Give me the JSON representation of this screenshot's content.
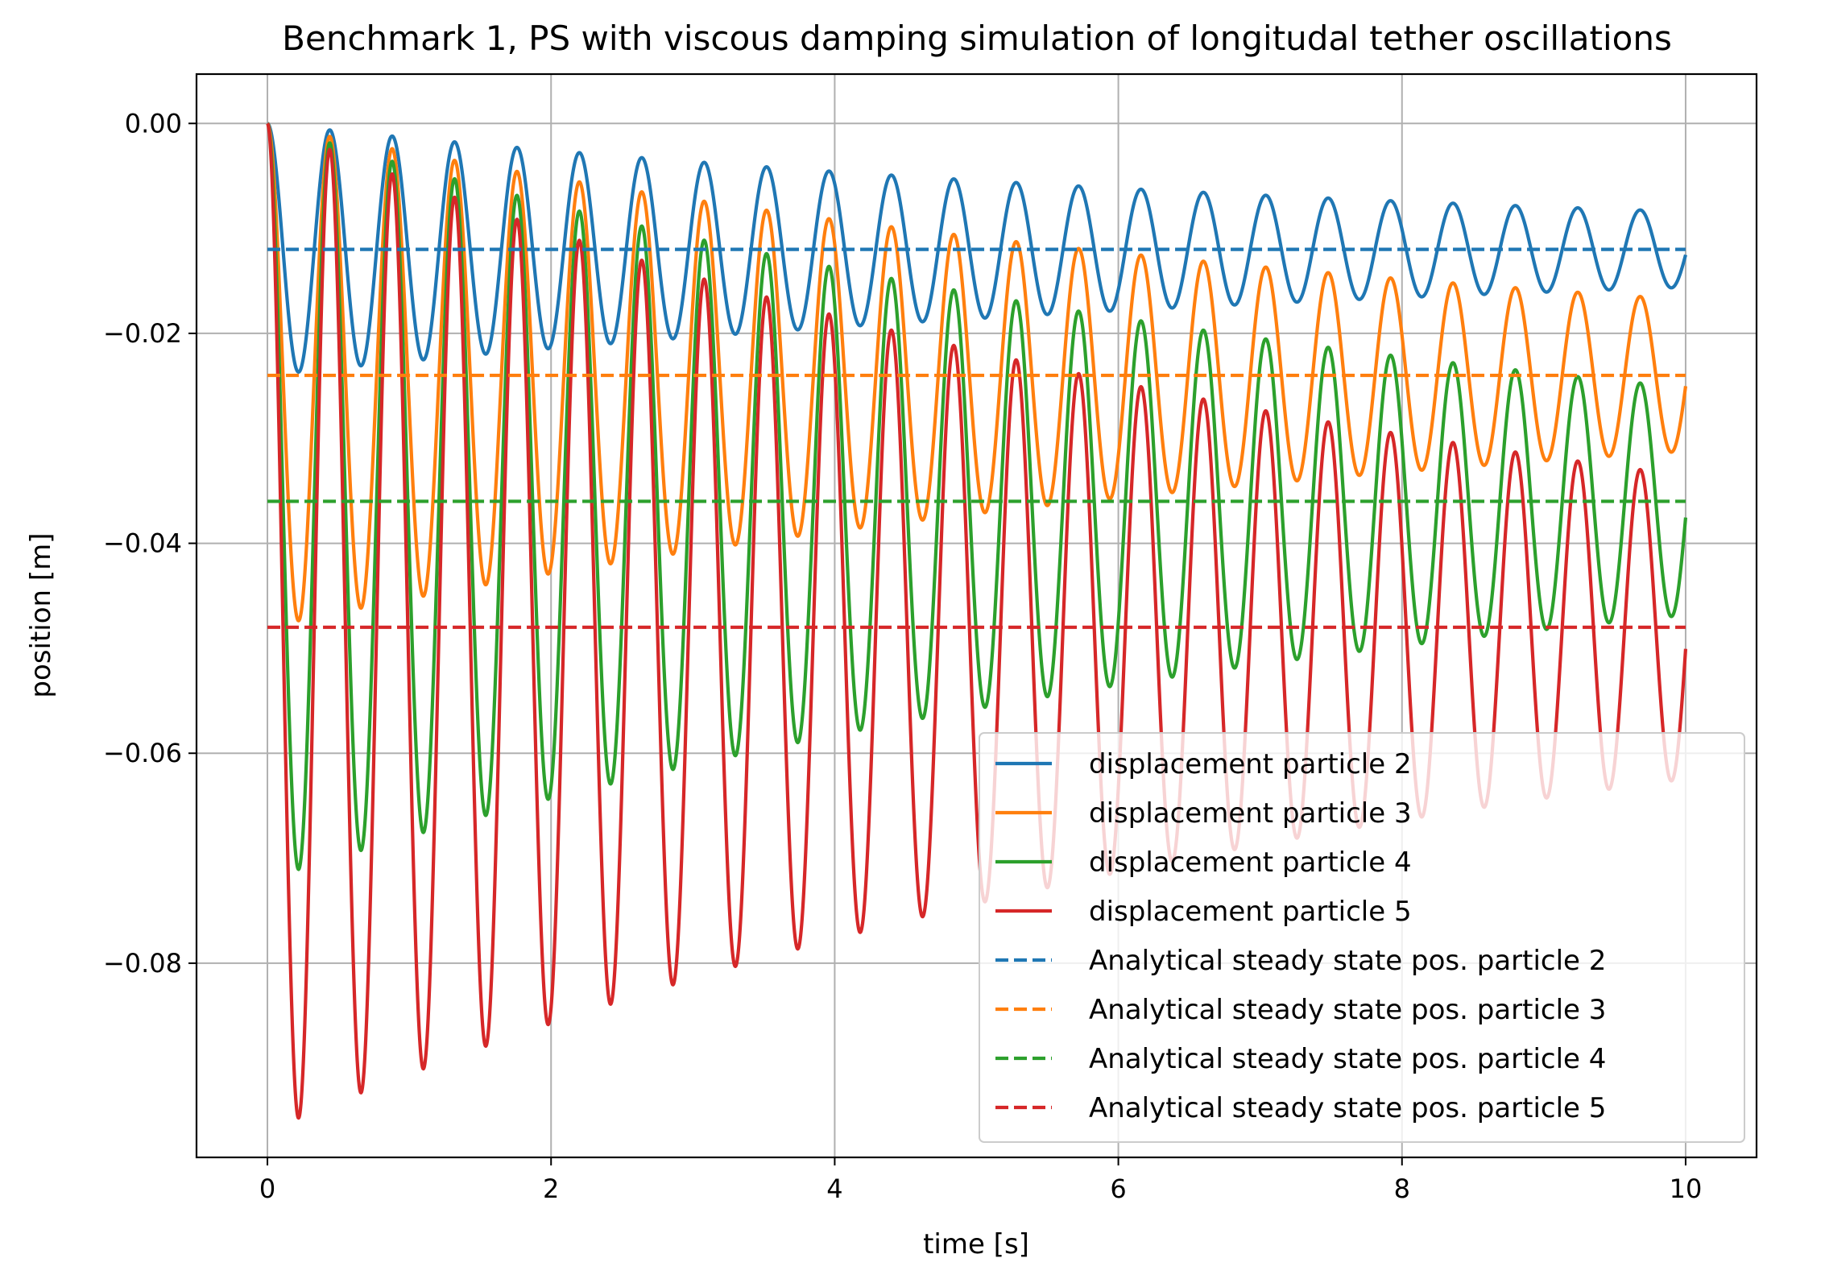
{
  "chart_data": {
    "type": "line",
    "title": "Benchmark 1, PS with viscous damping simulation of longitudal tether oscillations",
    "xlabel": "time [s]",
    "ylabel": "position [m]",
    "xlim": [
      -0.5,
      10.5
    ],
    "ylim": [
      -0.0985,
      0.0047
    ],
    "grid": true,
    "legend_position": "lower right",
    "xticks": [
      0,
      2,
      4,
      6,
      8,
      10
    ],
    "xtick_labels": [
      "0",
      "2",
      "4",
      "6",
      "8",
      "10"
    ],
    "yticks": [
      0.0,
      -0.02,
      -0.04,
      -0.06,
      -0.08
    ],
    "ytick_labels": [
      "0.00",
      "−0.02",
      "−0.04",
      "−0.06",
      "−0.08"
    ],
    "oscillation": {
      "t_start": 0,
      "t_end": 10,
      "period_s": 0.44,
      "damping_per_s": 0.12
    },
    "series": [
      {
        "name": "displacement particle 2",
        "style": "solid",
        "color": "#1f77b4",
        "start": 0.0,
        "steady": -0.012
      },
      {
        "name": "displacement particle 3",
        "style": "solid",
        "color": "#ff7f0e",
        "start": 0.0,
        "steady": -0.024
      },
      {
        "name": "displacement particle 4",
        "style": "solid",
        "color": "#2ca02c",
        "start": 0.0,
        "steady": -0.036
      },
      {
        "name": "displacement particle 5",
        "style": "solid",
        "color": "#d62728",
        "start": 0.0,
        "steady": -0.048
      },
      {
        "name": "Analytical steady state pos. particle 2",
        "style": "dashed",
        "color": "#1f77b4",
        "value": -0.012
      },
      {
        "name": "Analytical steady state pos. particle 3",
        "style": "dashed",
        "color": "#ff7f0e",
        "value": -0.024
      },
      {
        "name": "Analytical steady state pos. particle 4",
        "style": "dashed",
        "color": "#2ca02c",
        "value": -0.036
      },
      {
        "name": "Analytical steady state pos. particle 5",
        "style": "dashed",
        "color": "#d62728",
        "value": -0.048
      }
    ]
  }
}
